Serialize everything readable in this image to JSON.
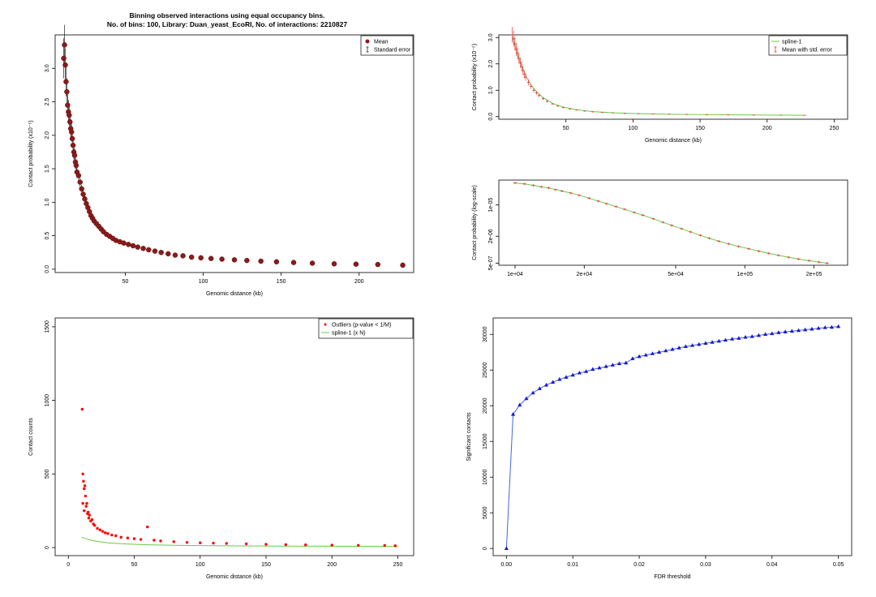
{
  "figure_title": {
    "line1": "Binning observed interactions using equal occupancy bins.",
    "line2": "No. of bins: 100, Library: Duan_yeast_EcoRI, No. of interactions: 2210827"
  },
  "colors": {
    "mean_points": "#8b1a1a",
    "error_bars_dark": "#222222",
    "spline": "#66cc44",
    "error_bars_red": "#ee3333",
    "outliers": "#ff0000",
    "fdr_line": "#4466dd",
    "fdr_points": "#1a1acc"
  },
  "chart_data": [
    {
      "id": "binned-means",
      "type": "scatter",
      "xlabel": "Genomic distance (kb)",
      "ylabel": "Contact probability (x10⁻⁵)",
      "x_ticks": [
        "50",
        "100",
        "150",
        "200"
      ],
      "y_ticks": [
        "0.0",
        "0.5",
        "1.0",
        "1.5",
        "2.0",
        "2.5",
        "3.0"
      ],
      "xlim": [
        5,
        235
      ],
      "ylim": [
        -0.05,
        3.5
      ],
      "legend": {
        "position": "top-right",
        "entries": [
          "Mean",
          "Standard error"
        ]
      },
      "series": [
        {
          "name": "Mean",
          "x": [
            10.5,
            11,
            11.5,
            12,
            12.5,
            13,
            13.5,
            14,
            14.5,
            15,
            15.5,
            16,
            16.5,
            17,
            17.5,
            18,
            18.5,
            19,
            20,
            21,
            22,
            23,
            24,
            25,
            26,
            27,
            28,
            29,
            30,
            31.5,
            33,
            34.5,
            36,
            38,
            40,
            42,
            44,
            46.5,
            49,
            52,
            55,
            58,
            61.5,
            65,
            69,
            73,
            77.5,
            82,
            87,
            92.5,
            98.5,
            105,
            112,
            120,
            128,
            137,
            147,
            158,
            170,
            184,
            198,
            212,
            228
          ],
          "y": [
            3.15,
            3.35,
            3.05,
            2.8,
            2.65,
            2.45,
            2.35,
            2.3,
            2.2,
            2.1,
            2.05,
            1.95,
            1.85,
            1.75,
            1.7,
            1.6,
            1.55,
            1.45,
            1.4,
            1.3,
            1.2,
            1.12,
            1.05,
            0.98,
            0.92,
            0.86,
            0.8,
            0.76,
            0.72,
            0.68,
            0.64,
            0.6,
            0.56,
            0.52,
            0.49,
            0.46,
            0.43,
            0.41,
            0.39,
            0.37,
            0.35,
            0.33,
            0.31,
            0.29,
            0.27,
            0.25,
            0.23,
            0.21,
            0.2,
            0.18,
            0.17,
            0.16,
            0.15,
            0.14,
            0.13,
            0.12,
            0.11,
            0.1,
            0.09,
            0.08,
            0.075,
            0.07,
            0.06
          ],
          "err": [
            0.3,
            0.3,
            0.25,
            0.22,
            0.2,
            0.18,
            0.18,
            0.16,
            0.15,
            0.14,
            0.14,
            0.13,
            0.12,
            0.11,
            0.1,
            0.1,
            0.09,
            0.09,
            0.08,
            0.07,
            0.06,
            0.06,
            0.05,
            0.05,
            0.04,
            0.04,
            0.04,
            0.03,
            0.03,
            0.03,
            0.03,
            0.02,
            0.02,
            0.02,
            0.02,
            0.02,
            0.02,
            0.01,
            0.01,
            0.01,
            0.01,
            0.01,
            0.01,
            0.01,
            0.01,
            0.01,
            0.01,
            0.01,
            0.01,
            0.01,
            0.01,
            0.01,
            0.01,
            0.01,
            0.01,
            0.01,
            0.01,
            0.01,
            0.01,
            0.01,
            0.01,
            0.01,
            0.01
          ]
        }
      ]
    },
    {
      "id": "spline-fit",
      "type": "line",
      "xlabel": "Genomic distance (kb)",
      "ylabel": "Contact probability (x10⁻⁵)",
      "x_ticks": [
        "50",
        "100",
        "150",
        "200",
        "250"
      ],
      "y_ticks": [
        "0.0",
        "1.0",
        "2.0",
        "3.0"
      ],
      "xlim": [
        0,
        260
      ],
      "ylim": [
        -0.1,
        3.1
      ],
      "legend": {
        "position": "top-right",
        "entries": [
          "spline-1",
          "Mean with std. error"
        ]
      },
      "series": [
        {
          "name": "Mean with std. error",
          "x": [
            10,
            11,
            12,
            13,
            14,
            15,
            16,
            17,
            18,
            19,
            20,
            22,
            24,
            26,
            28,
            30,
            33,
            36,
            40,
            44,
            48,
            53,
            58,
            64,
            70,
            77,
            85,
            94,
            104,
            115,
            127,
            140,
            155,
            171,
            190,
            210,
            228
          ],
          "y": [
            3.1,
            2.95,
            2.75,
            2.55,
            2.4,
            2.2,
            2.05,
            1.9,
            1.75,
            1.6,
            1.5,
            1.3,
            1.15,
            1.0,
            0.9,
            0.8,
            0.68,
            0.58,
            0.48,
            0.4,
            0.34,
            0.29,
            0.25,
            0.21,
            0.18,
            0.16,
            0.14,
            0.12,
            0.11,
            0.1,
            0.09,
            0.08,
            0.07,
            0.065,
            0.06,
            0.055,
            0.05
          ],
          "err": [
            0.3,
            0.3,
            0.25,
            0.25,
            0.22,
            0.2,
            0.2,
            0.18,
            0.16,
            0.15,
            0.14,
            0.12,
            0.1,
            0.08,
            0.07,
            0.06,
            0.05,
            0.04,
            0.03,
            0.03,
            0.02,
            0.02,
            0.02,
            0.02,
            0.02,
            0.01,
            0.01,
            0.01,
            0.01,
            0.01,
            0.01,
            0.01,
            0.01,
            0.01,
            0.01,
            0.01,
            0.01
          ]
        },
        {
          "name": "spline-1",
          "x": [
            10,
            12,
            14,
            16,
            18,
            20,
            24,
            28,
            33,
            40,
            48,
            58,
            70,
            85,
            104,
            127,
            155,
            190,
            228
          ],
          "y": [
            3.05,
            2.7,
            2.35,
            2.05,
            1.8,
            1.55,
            1.2,
            0.95,
            0.72,
            0.5,
            0.36,
            0.26,
            0.19,
            0.145,
            0.11,
            0.09,
            0.075,
            0.062,
            0.05
          ]
        }
      ]
    },
    {
      "id": "spline-log",
      "type": "line",
      "x_scale": "log",
      "y_scale": "log",
      "ylabel": "Contact probability (log-scale)",
      "x_ticks": [
        "1e+04",
        "2e+04",
        "5e+04",
        "1e+05",
        "2e+05"
      ],
      "y_ticks": [
        "5e-07",
        "2e-06",
        "1e-05"
      ],
      "xlim": [
        8500,
        280000
      ],
      "ylim": [
        4.5e-07,
        3.6e-05
      ],
      "series": [
        {
          "name": "Mean with std. error",
          "x": [
            10000,
            11000,
            12000,
            13000,
            14000,
            15000,
            16000,
            17500,
            19000,
            21000,
            23000,
            25000,
            27500,
            30000,
            33000,
            36000,
            40000,
            44000,
            48000,
            53000,
            58000,
            64000,
            70000,
            77000,
            85000,
            94000,
            104000,
            115000,
            127000,
            140000,
            155000,
            171000,
            190000,
            210000,
            228000
          ],
          "y": [
            3.1e-05,
            2.95e-05,
            2.75e-05,
            2.55e-05,
            2.4e-05,
            2.2e-05,
            2.05e-05,
            1.85e-05,
            1.65e-05,
            1.42e-05,
            1.22e-05,
            1.07e-05,
            9.2e-06,
            8e-06,
            6.8e-06,
            5.9e-06,
            4.9e-06,
            4.1e-06,
            3.5e-06,
            2.95e-06,
            2.5e-06,
            2.1e-06,
            1.8e-06,
            1.55e-06,
            1.35e-06,
            1.18e-06,
            1.05e-06,
            9.3e-07,
            8.3e-07,
            7.5e-07,
            6.8e-07,
            6.2e-07,
            5.7e-07,
            5.3e-07,
            5e-07
          ]
        }
      ]
    },
    {
      "id": "contact-counts",
      "type": "scatter",
      "xlabel": "Genomic distance (kb)",
      "ylabel": "Contact counts",
      "x_ticks": [
        "0",
        "50",
        "100",
        "150",
        "200",
        "250"
      ],
      "y_ticks": [
        "0",
        "500",
        "1000",
        "1500"
      ],
      "xlim": [
        -10,
        262
      ],
      "ylim": [
        -55,
        1560
      ],
      "legend": {
        "position": "top-right",
        "entries": [
          "Outliers (p-value < 1/M)",
          "spline-1 (x N)"
        ]
      },
      "series": [
        {
          "name": "Outliers (p-value < 1/M)",
          "x": [
            10.5,
            11,
            11,
            11.5,
            12,
            12,
            12.5,
            13,
            13.5,
            14,
            14.5,
            15,
            15.5,
            16,
            17,
            18,
            19,
            20,
            22,
            24,
            26,
            28,
            30,
            33,
            36,
            40,
            45,
            50,
            55,
            60,
            65,
            70,
            80,
            90,
            100,
            110,
            120,
            135,
            150,
            165,
            180,
            200,
            220,
            240,
            248
          ],
          "y": [
            940,
            500,
            300,
            450,
            400,
            250,
            420,
            350,
            280,
            300,
            230,
            240,
            200,
            220,
            180,
            190,
            160,
            150,
            130,
            120,
            110,
            100,
            95,
            85,
            80,
            70,
            65,
            60,
            55,
            140,
            50,
            45,
            40,
            35,
            32,
            30,
            28,
            25,
            22,
            20,
            18,
            16,
            15,
            14,
            12
          ]
        },
        {
          "name": "spline-1 (x N)",
          "x": [
            10,
            15,
            20,
            25,
            30,
            40,
            50,
            60,
            80,
            100,
            130,
            160,
            200,
            250
          ],
          "y": [
            70,
            55,
            45,
            38,
            32,
            26,
            22,
            19,
            15,
            13,
            11,
            10,
            9,
            8
          ]
        }
      ]
    },
    {
      "id": "fdr-curve",
      "type": "line",
      "xlabel": "FDR threshold",
      "ylabel": "Significant contacts",
      "x_ticks": [
        "0.00",
        "0.01",
        "0.02",
        "0.03",
        "0.04",
        "0.05"
      ],
      "y_ticks": [
        "0",
        "5000",
        "10000",
        "15000",
        "20000",
        "25000",
        "30000"
      ],
      "xlim": [
        -0.002,
        0.052
      ],
      "ylim": [
        -1000,
        32300
      ],
      "series": [
        {
          "name": "",
          "x": [
            0,
            0.001,
            0.002,
            0.003,
            0.004,
            0.005,
            0.006,
            0.007,
            0.008,
            0.009,
            0.01,
            0.011,
            0.012,
            0.013,
            0.014,
            0.015,
            0.016,
            0.017,
            0.018,
            0.019,
            0.02,
            0.021,
            0.022,
            0.023,
            0.024,
            0.025,
            0.026,
            0.027,
            0.028,
            0.029,
            0.03,
            0.031,
            0.032,
            0.033,
            0.034,
            0.035,
            0.036,
            0.037,
            0.038,
            0.039,
            0.04,
            0.041,
            0.042,
            0.043,
            0.044,
            0.045,
            0.046,
            0.047,
            0.048,
            0.049,
            0.05
          ],
          "y": [
            0,
            18800,
            20100,
            21000,
            21800,
            22400,
            22900,
            23300,
            23700,
            24000,
            24300,
            24600,
            24800,
            25100,
            25300,
            25500,
            25700,
            25900,
            26000,
            26600,
            26900,
            27100,
            27300,
            27500,
            27700,
            27900,
            28100,
            28300,
            28450,
            28600,
            28750,
            28900,
            29050,
            29200,
            29350,
            29450,
            29600,
            29700,
            29850,
            30000,
            30100,
            30250,
            30350,
            30450,
            30550,
            30650,
            30750,
            30850,
            30950,
            31000,
            31100
          ]
        }
      ]
    }
  ]
}
